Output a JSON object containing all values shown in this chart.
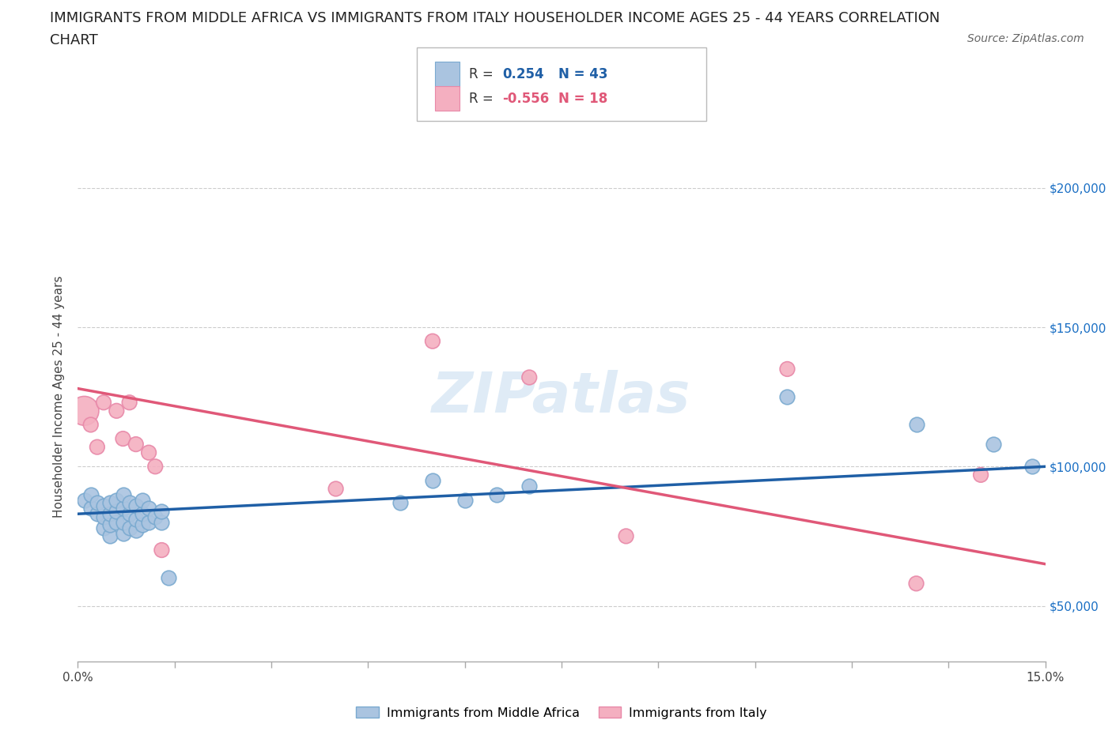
{
  "title_line1": "IMMIGRANTS FROM MIDDLE AFRICA VS IMMIGRANTS FROM ITALY HOUSEHOLDER INCOME AGES 25 - 44 YEARS CORRELATION",
  "title_line2": "CHART",
  "source_text": "Source: ZipAtlas.com",
  "ylabel": "Householder Income Ages 25 - 44 years",
  "watermark": "ZIPatlas",
  "blue_R": 0.254,
  "blue_N": 43,
  "pink_R": -0.556,
  "pink_N": 18,
  "blue_color": "#aac4e0",
  "blue_edge_color": "#7aaad0",
  "pink_color": "#f4afc0",
  "pink_edge_color": "#e888a8",
  "blue_line_color": "#1f5fa6",
  "pink_line_color": "#e05878",
  "legend_blue_label": "Immigrants from Middle Africa",
  "legend_pink_label": "Immigrants from Italy",
  "xlim": [
    0.0,
    0.15
  ],
  "ylim": [
    30000,
    220000
  ],
  "yticks": [
    50000,
    100000,
    150000,
    200000
  ],
  "ytick_labels": [
    "$50,000",
    "$100,000",
    "$150,000",
    "$200,000"
  ],
  "xticks": [
    0.0,
    0.015,
    0.03,
    0.045,
    0.06,
    0.075,
    0.09,
    0.105,
    0.12,
    0.135,
    0.15
  ],
  "xtick_labels": [
    "0.0%",
    "",
    "",
    "",
    "",
    "",
    "",
    "",
    "",
    "",
    "15.0%"
  ],
  "blue_x": [
    0.001,
    0.002,
    0.002,
    0.003,
    0.003,
    0.004,
    0.004,
    0.004,
    0.005,
    0.005,
    0.005,
    0.005,
    0.006,
    0.006,
    0.006,
    0.007,
    0.007,
    0.007,
    0.007,
    0.008,
    0.008,
    0.008,
    0.009,
    0.009,
    0.009,
    0.01,
    0.01,
    0.01,
    0.011,
    0.011,
    0.012,
    0.013,
    0.013,
    0.014,
    0.05,
    0.055,
    0.06,
    0.065,
    0.07,
    0.11,
    0.13,
    0.142,
    0.148
  ],
  "blue_y": [
    88000,
    85000,
    90000,
    83000,
    87000,
    78000,
    82000,
    86000,
    75000,
    79000,
    83000,
    87000,
    80000,
    84000,
    88000,
    76000,
    80000,
    85000,
    90000,
    78000,
    83000,
    87000,
    77000,
    81000,
    86000,
    79000,
    83000,
    88000,
    80000,
    85000,
    82000,
    80000,
    84000,
    60000,
    87000,
    95000,
    88000,
    90000,
    93000,
    125000,
    115000,
    108000,
    100000
  ],
  "pink_x": [
    0.001,
    0.002,
    0.003,
    0.004,
    0.006,
    0.007,
    0.008,
    0.009,
    0.011,
    0.012,
    0.013,
    0.04,
    0.055,
    0.07,
    0.085,
    0.11,
    0.13,
    0.14
  ],
  "pink_y": [
    120000,
    115000,
    107000,
    123000,
    120000,
    110000,
    123000,
    108000,
    105000,
    100000,
    70000,
    92000,
    145000,
    132000,
    75000,
    135000,
    58000,
    97000
  ],
  "large_pink_idx": 0,
  "blue_line_x0": 0.0,
  "blue_line_x1": 0.15,
  "blue_line_y0": 83000,
  "blue_line_y1": 100000,
  "pink_line_x0": 0.0,
  "pink_line_x1": 0.15,
  "pink_line_y0": 128000,
  "pink_line_y1": 65000,
  "background_color": "#ffffff",
  "grid_color": "#cccccc",
  "ytick_color": "#1a6fc4",
  "title_fontsize": 13,
  "axis_label_fontsize": 11,
  "tick_label_fontsize": 11
}
